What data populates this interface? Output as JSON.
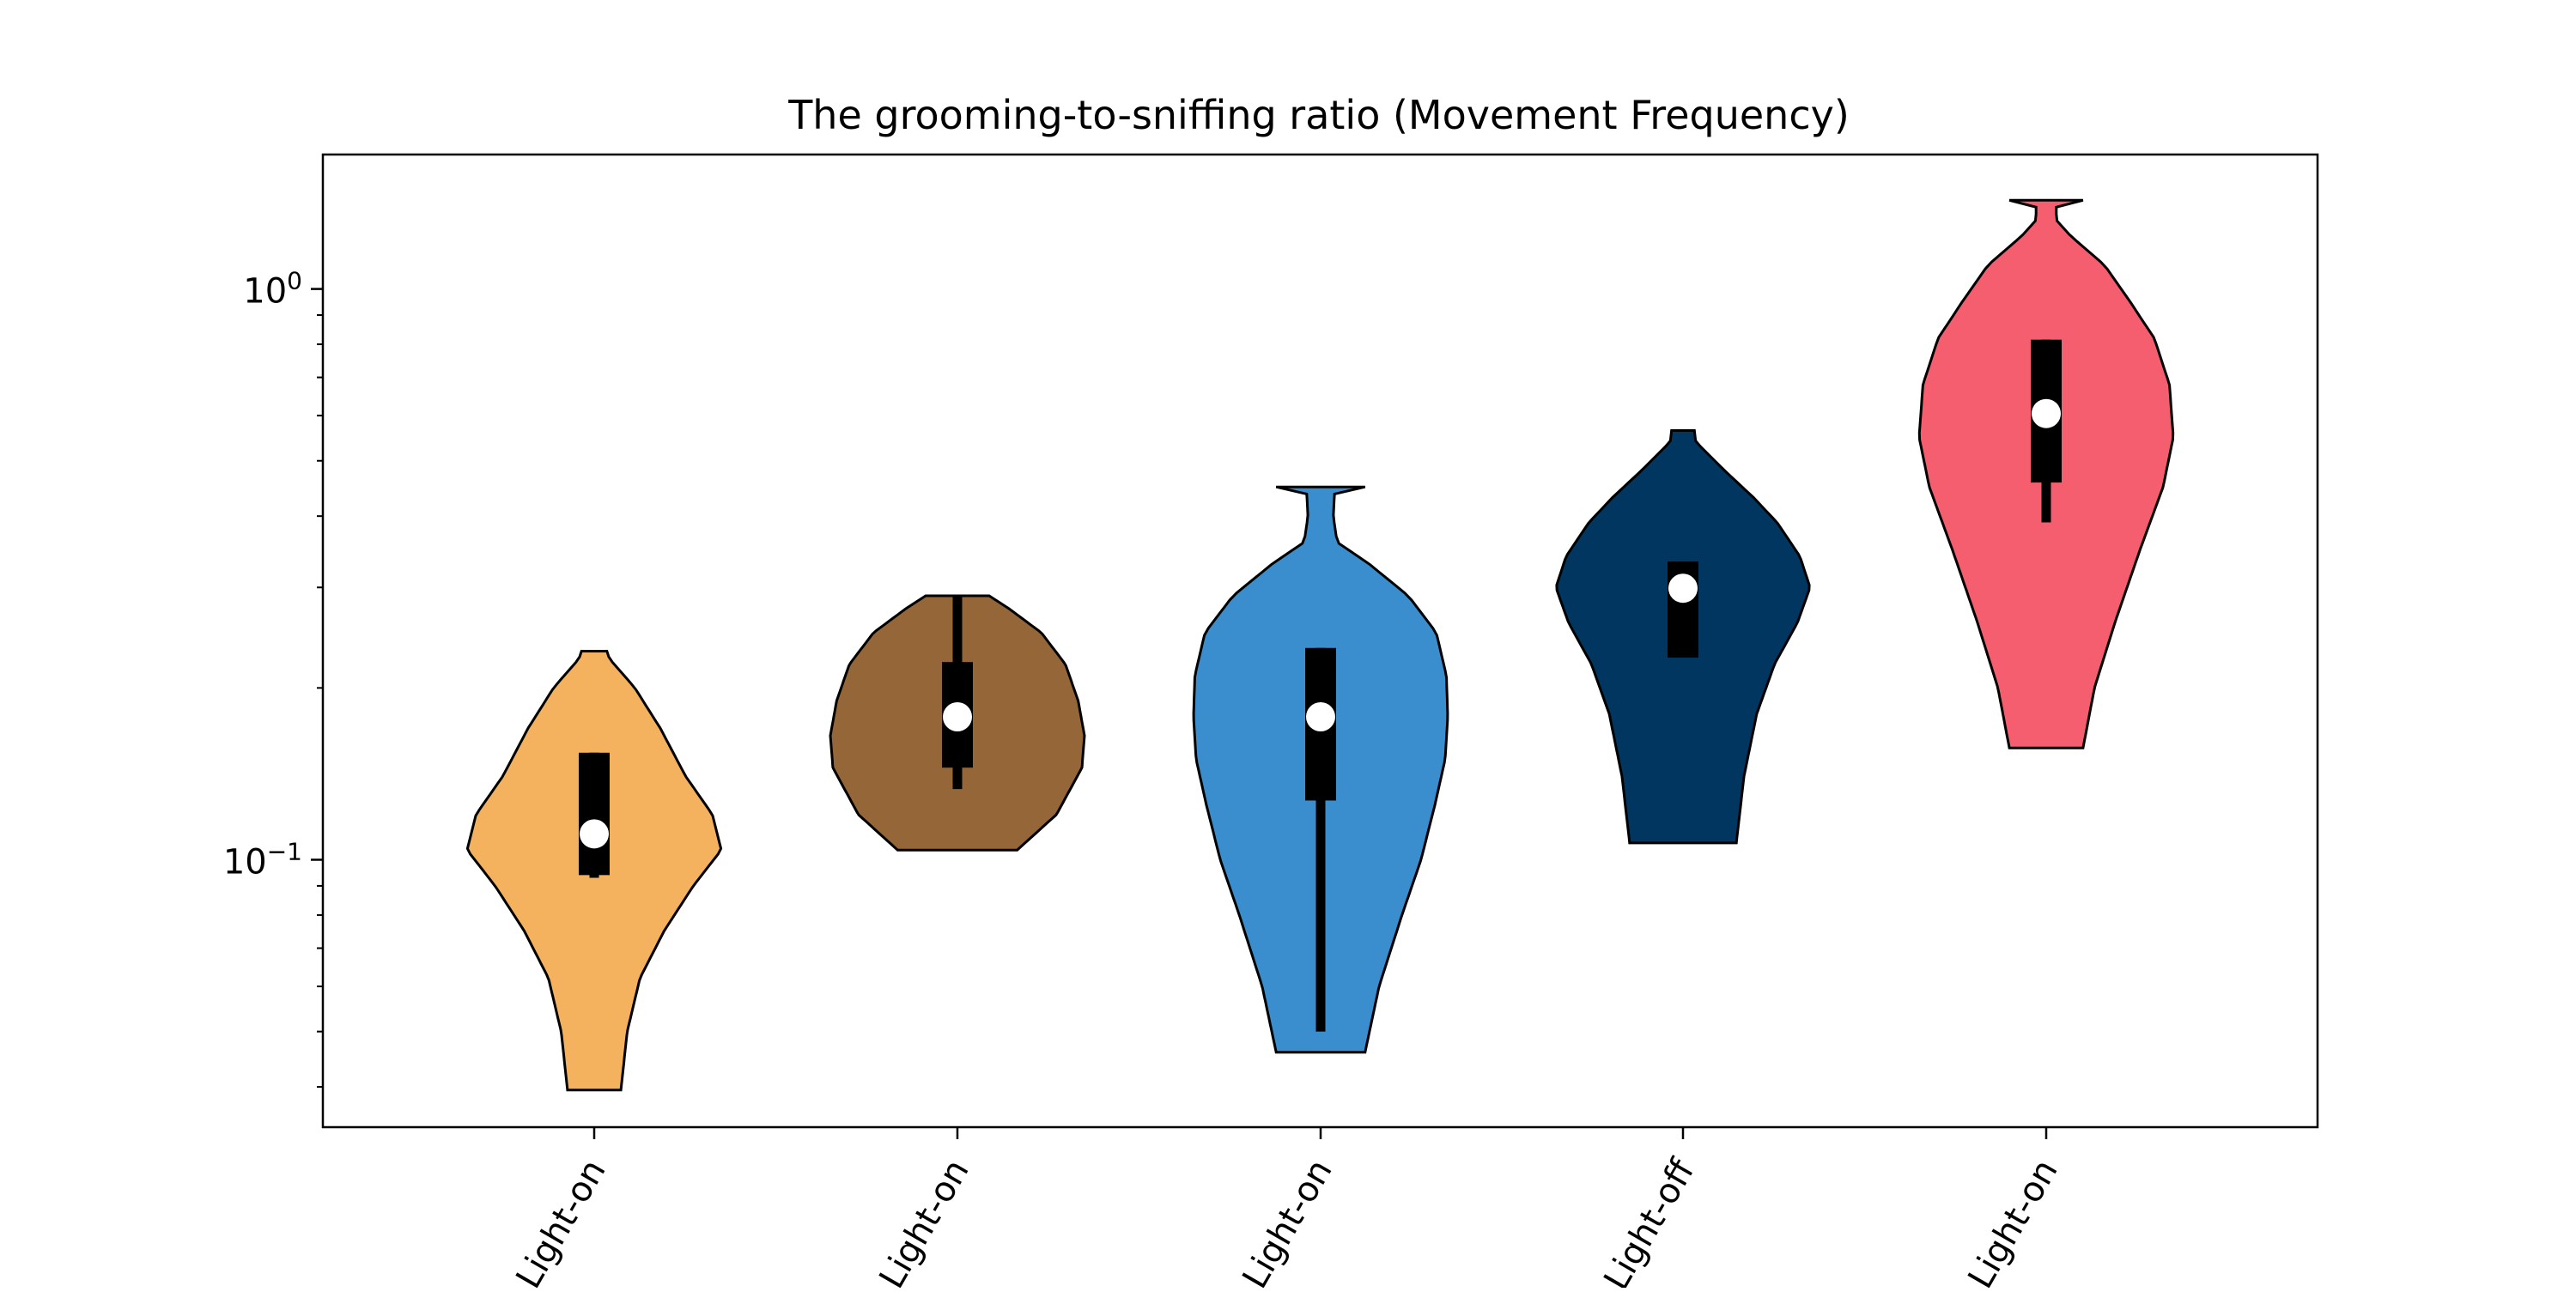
{
  "chart_data": {
    "type": "violin",
    "title": "The grooming-to-sniffing ratio (Movement Frequency)",
    "xlabel": "",
    "ylabel": "",
    "yscale": "log",
    "ylim": [
      0.034,
      1.72
    ],
    "yticks": [
      {
        "value": 1.0,
        "base": "10",
        "exp": "0"
      },
      {
        "value": 0.1,
        "base": "10",
        "exp": "−1"
      }
    ],
    "grid": false,
    "legend": "none",
    "violins": [
      {
        "label": "Light-on",
        "color": "#F4B25F",
        "min": 0.0395,
        "max": 0.232,
        "q1": 0.094,
        "median": 0.111,
        "q3": 0.154,
        "whisker_low": 0.093,
        "whisker_high": 0.154,
        "profile": [
          [
            0.0395,
            0.21
          ],
          [
            0.05,
            0.26
          ],
          [
            0.062,
            0.36
          ],
          [
            0.075,
            0.55
          ],
          [
            0.09,
            0.78
          ],
          [
            0.104,
            1.0
          ],
          [
            0.12,
            0.93
          ],
          [
            0.14,
            0.72
          ],
          [
            0.17,
            0.52
          ],
          [
            0.2,
            0.32
          ],
          [
            0.225,
            0.12
          ],
          [
            0.232,
            0.1
          ]
        ]
      },
      {
        "label": "Light-on",
        "color": "#946638",
        "min": 0.104,
        "max": 0.29,
        "q1": 0.145,
        "median": 0.178,
        "q3": 0.222,
        "whisker_low": 0.133,
        "whisker_high": 0.29,
        "profile": [
          [
            0.104,
            0.47
          ],
          [
            0.12,
            0.78
          ],
          [
            0.145,
            0.98
          ],
          [
            0.165,
            1.0
          ],
          [
            0.19,
            0.95
          ],
          [
            0.22,
            0.85
          ],
          [
            0.25,
            0.66
          ],
          [
            0.275,
            0.41
          ],
          [
            0.29,
            0.25
          ]
        ]
      },
      {
        "label": "Light-on",
        "color": "#3A8ECD",
        "min": 0.046,
        "max": 0.45,
        "q1": 0.127,
        "median": 0.178,
        "q3": 0.235,
        "whisker_low": 0.05,
        "whisker_high": 0.235,
        "profile": [
          [
            0.046,
            0.35
          ],
          [
            0.06,
            0.46
          ],
          [
            0.08,
            0.64
          ],
          [
            0.1,
            0.79
          ],
          [
            0.125,
            0.9
          ],
          [
            0.15,
            0.98
          ],
          [
            0.178,
            1.0
          ],
          [
            0.21,
            0.99
          ],
          [
            0.25,
            0.91
          ],
          [
            0.29,
            0.69
          ],
          [
            0.33,
            0.38
          ],
          [
            0.36,
            0.13
          ],
          [
            0.4,
            0.1
          ],
          [
            0.44,
            0.11
          ],
          [
            0.45,
            0.11
          ]
        ]
      },
      {
        "label": "Light-off",
        "color": "#00365F",
        "min": 0.107,
        "max": 0.565,
        "q1": 0.226,
        "median": 0.299,
        "q3": 0.333,
        "whisker_low": 0.226,
        "whisker_high": 0.333,
        "profile": [
          [
            0.107,
            0.42
          ],
          [
            0.14,
            0.48
          ],
          [
            0.18,
            0.58
          ],
          [
            0.22,
            0.72
          ],
          [
            0.26,
            0.9
          ],
          [
            0.3,
            1.0
          ],
          [
            0.34,
            0.92
          ],
          [
            0.39,
            0.74
          ],
          [
            0.43,
            0.56
          ],
          [
            0.48,
            0.33
          ],
          [
            0.54,
            0.1
          ],
          [
            0.565,
            0.09
          ]
        ]
      },
      {
        "label": "Light-on",
        "color": "#F45E6E",
        "min": 0.157,
        "max": 1.43,
        "q1": 0.458,
        "median": 0.605,
        "q3": 0.815,
        "whisker_low": 0.39,
        "whisker_high": 0.815,
        "profile": [
          [
            0.157,
            0.29
          ],
          [
            0.2,
            0.38
          ],
          [
            0.26,
            0.54
          ],
          [
            0.35,
            0.74
          ],
          [
            0.45,
            0.92
          ],
          [
            0.55,
            1.0
          ],
          [
            0.68,
            0.97
          ],
          [
            0.82,
            0.85
          ],
          [
            0.95,
            0.66
          ],
          [
            1.1,
            0.46
          ],
          [
            1.24,
            0.19
          ],
          [
            1.32,
            0.08
          ],
          [
            1.43,
            0.08
          ]
        ]
      }
    ]
  }
}
